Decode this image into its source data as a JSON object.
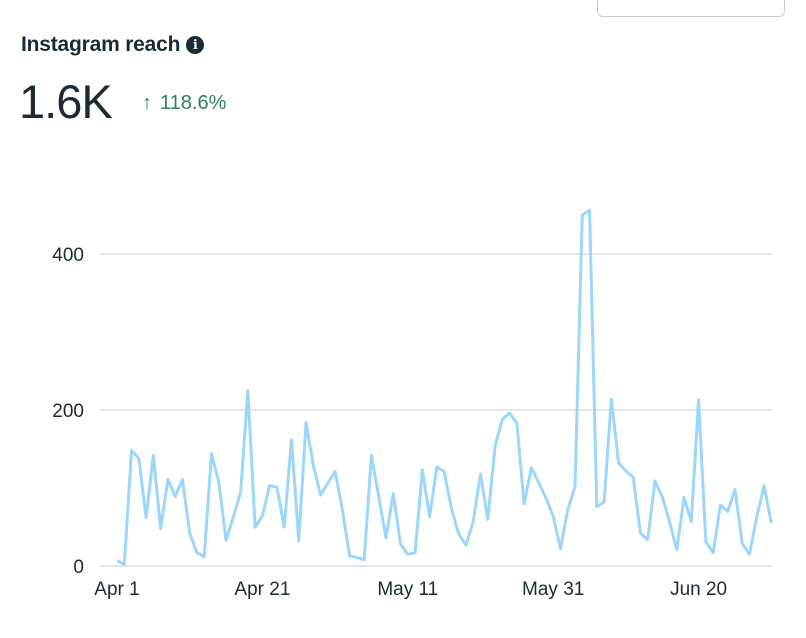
{
  "header": {
    "title": "Instagram reach",
    "info_icon": "info-icon",
    "metric_value": "1.6K",
    "delta_arrow": "↑",
    "delta_value": "118.6%",
    "delta_color": "#31825a"
  },
  "chart_data": {
    "type": "line",
    "title": "Instagram reach",
    "xlabel": "",
    "ylabel": "",
    "ylim": [
      0,
      500
    ],
    "yticks": [
      0,
      200,
      400
    ],
    "ytick_labels": [
      "0",
      "200",
      "400"
    ],
    "xtick_labels": [
      "Apr 1",
      "Apr 21",
      "May 11",
      "May 31",
      "Jun 20"
    ],
    "xtick_indices": [
      0,
      20,
      40,
      60,
      80
    ],
    "x_start": "Apr 1",
    "x_end": "Jun 29",
    "grid": true,
    "line_color": "#9dd6fb",
    "series": [
      {
        "name": "Reach",
        "values": [
          7,
          2,
          148,
          138,
          62,
          142,
          48,
          111,
          89,
          111,
          42,
          17,
          12,
          144,
          108,
          33,
          63,
          94,
          225,
          50,
          64,
          103,
          101,
          50,
          162,
          32,
          184,
          129,
          91,
          106,
          121,
          72,
          13,
          11,
          8,
          142,
          89,
          36,
          93,
          28,
          15,
          17,
          123,
          63,
          127,
          121,
          74,
          41,
          27,
          57,
          118,
          60,
          153,
          188,
          196,
          183,
          80,
          126,
          107,
          87,
          64,
          22,
          72,
          102,
          450,
          456,
          76,
          82,
          214,
          132,
          122,
          114,
          42,
          34,
          109,
          89,
          57,
          21,
          88,
          57,
          213,
          31,
          17,
          78,
          70,
          98,
          29,
          15,
          63,
          103,
          55
        ]
      }
    ]
  }
}
